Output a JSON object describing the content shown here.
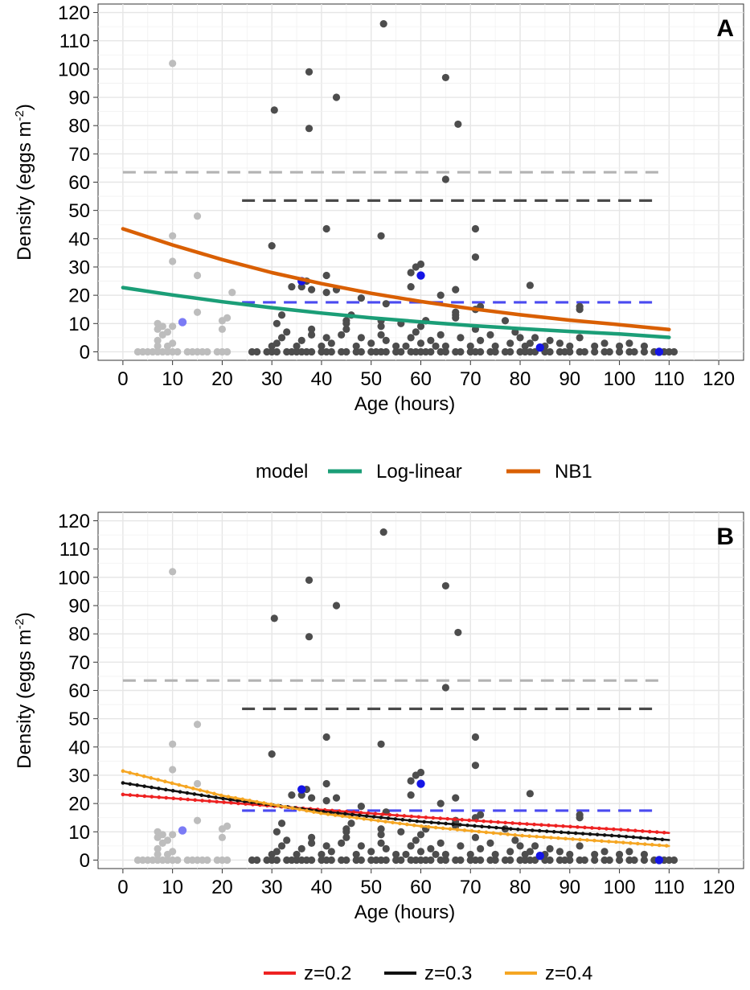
{
  "chart_data": [
    {
      "panel_label": "A",
      "type": "scatter",
      "xlabel": "Age (hours)",
      "ylabel_main": "Density (eggs m",
      "ylabel_sup": "-2",
      "ylabel_close": ")",
      "xlim": [
        -5,
        125
      ],
      "ylim": [
        -3,
        123
      ],
      "xticks": [
        0,
        10,
        20,
        30,
        40,
        50,
        60,
        70,
        80,
        90,
        100,
        110,
        120
      ],
      "yticks": [
        0,
        10,
        20,
        30,
        40,
        50,
        60,
        70,
        80,
        90,
        100,
        110,
        120
      ],
      "grid": true,
      "legend": {
        "title": "model",
        "placement": "bottom",
        "entries": [
          {
            "label": "Log-linear",
            "color": "#1b9e77"
          },
          {
            "label": "NB1",
            "color": "#d95f02"
          }
        ]
      },
      "series": [
        {
          "kind": "line",
          "color": "#1b9e77",
          "points": [
            [
              0,
              22.7
            ],
            [
              10,
              20.1
            ],
            [
              20,
              17.7
            ],
            [
              30,
              15.6
            ],
            [
              40,
              13.7
            ],
            [
              50,
              12.0
            ],
            [
              60,
              10.6
            ],
            [
              70,
              9.3
            ],
            [
              80,
              8.2
            ],
            [
              90,
              7.2
            ],
            [
              100,
              6.3
            ],
            [
              110,
              5.1
            ]
          ]
        },
        {
          "kind": "line",
          "color": "#d95f02",
          "points": [
            [
              0,
              43.5
            ],
            [
              10,
              37.8
            ],
            [
              20,
              32.6
            ],
            [
              30,
              28.0
            ],
            [
              40,
              24.1
            ],
            [
              50,
              20.7
            ],
            [
              60,
              17.8
            ],
            [
              70,
              15.3
            ],
            [
              80,
              13.1
            ],
            [
              90,
              11.2
            ],
            [
              100,
              9.6
            ],
            [
              110,
              7.9
            ]
          ]
        }
      ]
    },
    {
      "panel_label": "B",
      "type": "scatter",
      "xlabel": "Age (hours)",
      "ylabel_main": "Density (eggs m",
      "ylabel_sup": "-2",
      "ylabel_close": ")",
      "xlim": [
        -5,
        125
      ],
      "ylim": [
        -3,
        123
      ],
      "xticks": [
        0,
        10,
        20,
        30,
        40,
        50,
        60,
        70,
        80,
        90,
        100,
        110,
        120
      ],
      "yticks": [
        0,
        10,
        20,
        30,
        40,
        50,
        60,
        70,
        80,
        90,
        100,
        110,
        120
      ],
      "grid": true,
      "legend": {
        "title": "",
        "placement": "bottom",
        "entries": [
          {
            "label": "z=0.2",
            "color": "#ee2222"
          },
          {
            "label": "z=0.3",
            "color": "#111111"
          },
          {
            "label": "z=0.4",
            "color": "#f5a623"
          }
        ]
      },
      "series": [
        {
          "kind": "line",
          "color": "#ee2222",
          "points": [
            [
              0,
              23.2
            ],
            [
              20,
              20.5
            ],
            [
              40,
              17.8
            ],
            [
              60,
              15.2
            ],
            [
              80,
              12.9
            ],
            [
              100,
              10.8
            ],
            [
              110,
              9.6
            ]
          ]
        },
        {
          "kind": "line",
          "color": "#111111",
          "points": [
            [
              0,
              27.3
            ],
            [
              20,
              21.8
            ],
            [
              40,
              17.2
            ],
            [
              60,
              13.6
            ],
            [
              80,
              10.8
            ],
            [
              100,
              8.5
            ],
            [
              110,
              7.1
            ]
          ]
        },
        {
          "kind": "line",
          "color": "#f5a623",
          "points": [
            [
              0,
              31.5
            ],
            [
              20,
              22.8
            ],
            [
              40,
              16.5
            ],
            [
              60,
              12.0
            ],
            [
              80,
              8.7
            ],
            [
              100,
              6.3
            ],
            [
              110,
              5.0
            ]
          ]
        }
      ]
    }
  ],
  "shared": {
    "hlines": [
      {
        "y": 63.5,
        "x0": 0,
        "x1": 108,
        "color": "#b3b3b3"
      },
      {
        "y": 53.5,
        "x0": 24,
        "x1": 108,
        "color": "#4a4a4a"
      },
      {
        "y": 17.5,
        "x0": 24,
        "x1": 108,
        "color": "#4a4af0"
      }
    ],
    "points_light": [
      [
        3,
        0
      ],
      [
        4,
        0
      ],
      [
        5,
        0
      ],
      [
        6,
        0
      ],
      [
        7,
        0
      ],
      [
        8,
        0
      ],
      [
        9,
        0
      ],
      [
        10,
        0
      ],
      [
        11,
        0
      ],
      [
        13,
        0
      ],
      [
        14,
        0
      ],
      [
        15,
        0
      ],
      [
        16,
        0
      ],
      [
        17,
        0
      ],
      [
        19,
        0
      ],
      [
        20,
        0
      ],
      [
        21,
        0
      ],
      [
        7,
        2
      ],
      [
        9,
        2
      ],
      [
        10,
        3
      ],
      [
        7,
        4
      ],
      [
        8,
        6
      ],
      [
        9,
        7
      ],
      [
        7,
        8
      ],
      [
        8,
        9
      ],
      [
        10,
        9
      ],
      [
        7,
        10
      ],
      [
        15,
        14
      ],
      [
        20,
        8
      ],
      [
        20,
        11
      ],
      [
        21,
        12
      ],
      [
        22,
        21
      ],
      [
        10,
        32
      ],
      [
        15,
        27
      ],
      [
        15,
        48
      ],
      [
        10,
        41
      ],
      [
        10,
        102
      ]
    ],
    "points_dark": [
      [
        26,
        0
      ],
      [
        27,
        0
      ],
      [
        29,
        0
      ],
      [
        30,
        0
      ],
      [
        31,
        0
      ],
      [
        33,
        0
      ],
      [
        34,
        0
      ],
      [
        35,
        0
      ],
      [
        36,
        0
      ],
      [
        37,
        0
      ],
      [
        38,
        0
      ],
      [
        40,
        0
      ],
      [
        41,
        0
      ],
      [
        42,
        0
      ],
      [
        44,
        0
      ],
      [
        45,
        0
      ],
      [
        47,
        0
      ],
      [
        48,
        0
      ],
      [
        50,
        0
      ],
      [
        51,
        0
      ],
      [
        52,
        0
      ],
      [
        53,
        0
      ],
      [
        55,
        0
      ],
      [
        56,
        0
      ],
      [
        58,
        0
      ],
      [
        59,
        0
      ],
      [
        60,
        0
      ],
      [
        61,
        0
      ],
      [
        62,
        0
      ],
      [
        64,
        0
      ],
      [
        65,
        0
      ],
      [
        67,
        0
      ],
      [
        68,
        0
      ],
      [
        70,
        0
      ],
      [
        71,
        0
      ],
      [
        72,
        0
      ],
      [
        74,
        0
      ],
      [
        75,
        0
      ],
      [
        77,
        0
      ],
      [
        78,
        0
      ],
      [
        80,
        0
      ],
      [
        81,
        0
      ],
      [
        82,
        0
      ],
      [
        83,
        0
      ],
      [
        85,
        0
      ],
      [
        86,
        0
      ],
      [
        88,
        0
      ],
      [
        89,
        0
      ],
      [
        90,
        0
      ],
      [
        92,
        0
      ],
      [
        93,
        0
      ],
      [
        95,
        0
      ],
      [
        97,
        0
      ],
      [
        98,
        0
      ],
      [
        100,
        0
      ],
      [
        102,
        0
      ],
      [
        103,
        0
      ],
      [
        105,
        0
      ],
      [
        107,
        0
      ],
      [
        109,
        0
      ],
      [
        110,
        0
      ],
      [
        111,
        0
      ],
      [
        30,
        2
      ],
      [
        31,
        3
      ],
      [
        32,
        5
      ],
      [
        33,
        7
      ],
      [
        35,
        2
      ],
      [
        36,
        4
      ],
      [
        38,
        6
      ],
      [
        38,
        8
      ],
      [
        40,
        2
      ],
      [
        41,
        5
      ],
      [
        42,
        3
      ],
      [
        44,
        6
      ],
      [
        45,
        8
      ],
      [
        45,
        11
      ],
      [
        46,
        13
      ],
      [
        47,
        2
      ],
      [
        48,
        5
      ],
      [
        50,
        3
      ],
      [
        52,
        6
      ],
      [
        52,
        9
      ],
      [
        52,
        11
      ],
      [
        53,
        4
      ],
      [
        55,
        2
      ],
      [
        56,
        10
      ],
      [
        57,
        2
      ],
      [
        58,
        5
      ],
      [
        59,
        7
      ],
      [
        60,
        3
      ],
      [
        60,
        9
      ],
      [
        61,
        11
      ],
      [
        62,
        4
      ],
      [
        63,
        2
      ],
      [
        64,
        6
      ],
      [
        65,
        2
      ],
      [
        67,
        13
      ],
      [
        67,
        14
      ],
      [
        68,
        5
      ],
      [
        70,
        2
      ],
      [
        71,
        8
      ],
      [
        72,
        4
      ],
      [
        74,
        6
      ],
      [
        75,
        2
      ],
      [
        77,
        11
      ],
      [
        78,
        3
      ],
      [
        79,
        7
      ],
      [
        80,
        5
      ],
      [
        81,
        2
      ],
      [
        82,
        3
      ],
      [
        83,
        5
      ],
      [
        85,
        2
      ],
      [
        86,
        4
      ],
      [
        88,
        3
      ],
      [
        90,
        2
      ],
      [
        92,
        5
      ],
      [
        92,
        15
      ],
      [
        92,
        16
      ],
      [
        95,
        2
      ],
      [
        97,
        3
      ],
      [
        100,
        2
      ],
      [
        102,
        3
      ],
      [
        105,
        2
      ],
      [
        30,
        37.5
      ],
      [
        31,
        10
      ],
      [
        32,
        13
      ],
      [
        34,
        23
      ],
      [
        36,
        23
      ],
      [
        37,
        25
      ],
      [
        38,
        22
      ],
      [
        41,
        27
      ],
      [
        41,
        21
      ],
      [
        41,
        43.5
      ],
      [
        43,
        22
      ],
      [
        45,
        10
      ],
      [
        48,
        19
      ],
      [
        52,
        41
      ],
      [
        53,
        17
      ],
      [
        58,
        28
      ],
      [
        58,
        23
      ],
      [
        59,
        30
      ],
      [
        60,
        31
      ],
      [
        61,
        11
      ],
      [
        64,
        20
      ],
      [
        65,
        61
      ],
      [
        67,
        22
      ],
      [
        67,
        12
      ],
      [
        71,
        43.5
      ],
      [
        71,
        33.5
      ],
      [
        71,
        15
      ],
      [
        72,
        16
      ],
      [
        82,
        23.5
      ],
      [
        30.5,
        85.5
      ],
      [
        37.5,
        79
      ],
      [
        37.5,
        99
      ],
      [
        43,
        90
      ],
      [
        52.5,
        116
      ],
      [
        65,
        97
      ],
      [
        67.5,
        80.5
      ]
    ],
    "points_blue": [
      {
        "x": 12,
        "y": 10.5,
        "color": "#7b7bf5"
      },
      {
        "x": 36,
        "y": 25,
        "color": "#1515e6"
      },
      {
        "x": 60,
        "y": 27,
        "color": "#1515e6"
      },
      {
        "x": 84,
        "y": 1.5,
        "color": "#1515e6"
      },
      {
        "x": 108,
        "y": 0,
        "color": "#1515e6"
      }
    ]
  }
}
